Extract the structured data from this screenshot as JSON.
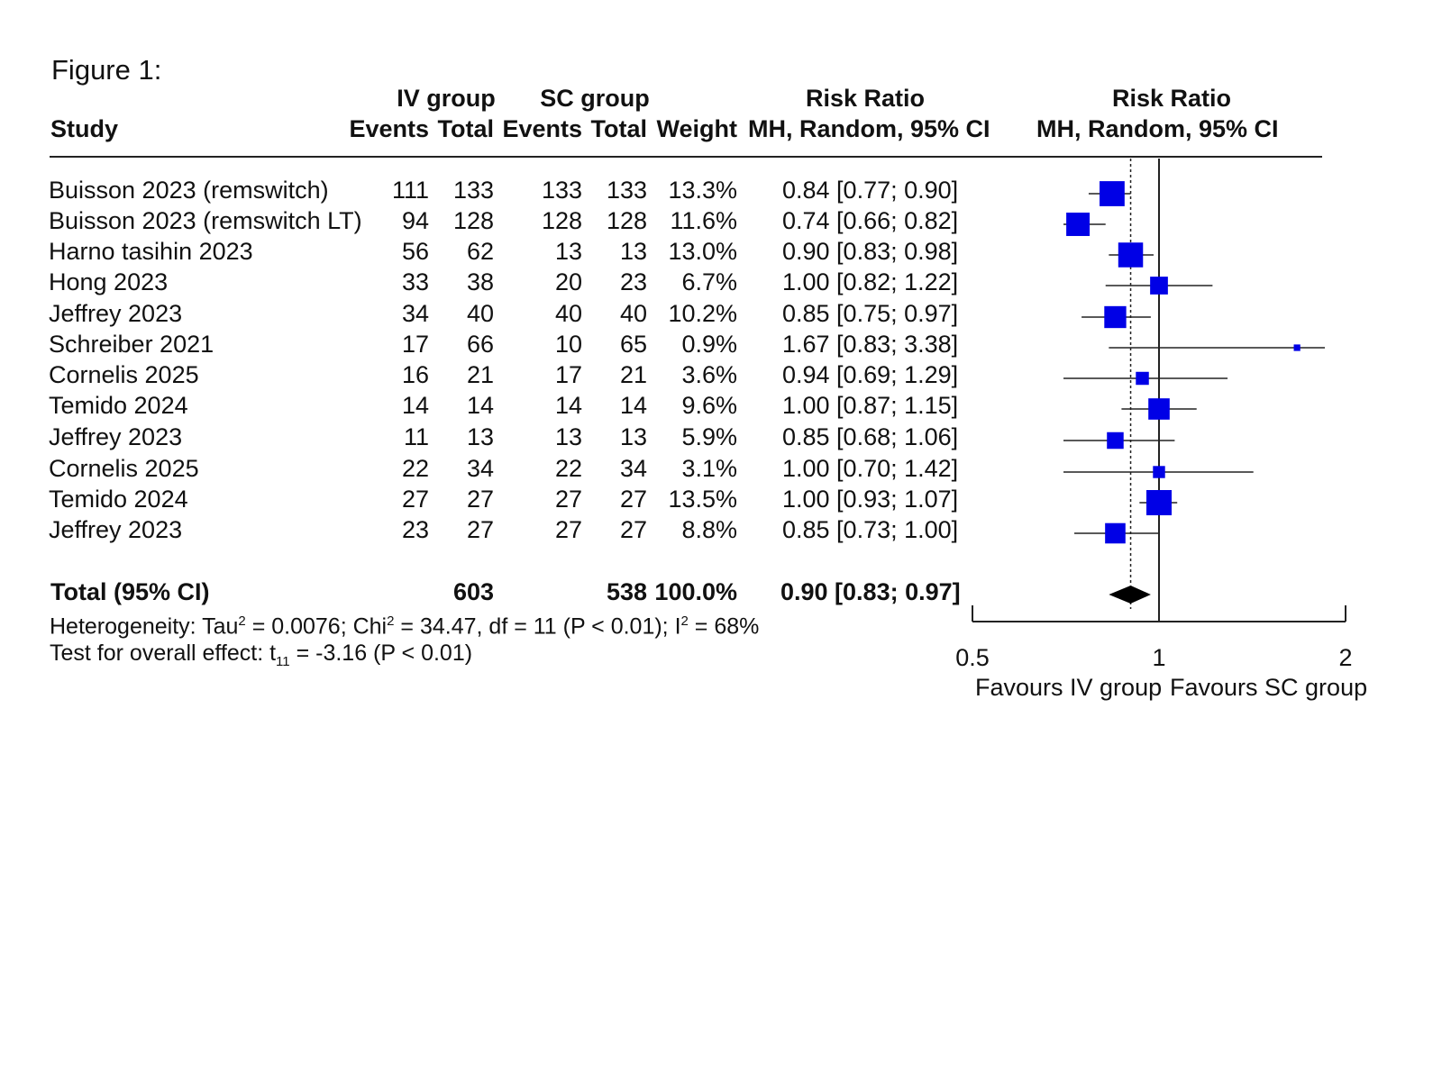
{
  "figure_caption": "Figure 1:",
  "header": {
    "iv_group": "IV group",
    "sc_group": "SC group",
    "risk_ratio": "Risk Ratio",
    "risk_ratio_plot": "Risk Ratio",
    "study": "Study",
    "events_iv": "Events",
    "total_iv": "Total",
    "events_sc": "Events",
    "total_sc": "Total",
    "weight": "Weight",
    "method": "MH, Random, 95% CI",
    "method_plot": "MH, Random, 95% CI"
  },
  "studies": [
    {
      "study": "Buisson 2023 (remswitch)",
      "iv_events": "111",
      "iv_total": "133",
      "sc_events": "133",
      "sc_total": "133",
      "weight": "13.3%",
      "ci_text": "0.84 [0.77; 0.90]"
    },
    {
      "study": "Buisson 2023 (remswitch LT)",
      "iv_events": "94",
      "iv_total": "128",
      "sc_events": "128",
      "sc_total": "128",
      "weight": "11.6%",
      "ci_text": "0.74 [0.66; 0.82]"
    },
    {
      "study": "Harno tasihin 2023",
      "iv_events": "56",
      "iv_total": "62",
      "sc_events": "13",
      "sc_total": "13",
      "weight": "13.0%",
      "ci_text": "0.90 [0.83; 0.98]"
    },
    {
      "study": "Hong 2023",
      "iv_events": "33",
      "iv_total": "38",
      "sc_events": "20",
      "sc_total": "23",
      "weight": "6.7%",
      "ci_text": "1.00 [0.82; 1.22]"
    },
    {
      "study": "Jeffrey 2023",
      "iv_events": "34",
      "iv_total": "40",
      "sc_events": "40",
      "sc_total": "40",
      "weight": "10.2%",
      "ci_text": "0.85 [0.75; 0.97]"
    },
    {
      "study": "Schreiber 2021",
      "iv_events": "17",
      "iv_total": "66",
      "sc_events": "10",
      "sc_total": "65",
      "weight": "0.9%",
      "ci_text": "1.67 [0.83; 3.38]"
    },
    {
      "study": "Cornelis 2025",
      "iv_events": "16",
      "iv_total": "21",
      "sc_events": "17",
      "sc_total": "21",
      "weight": "3.6%",
      "ci_text": "0.94 [0.69; 1.29]"
    },
    {
      "study": "Temido 2024",
      "iv_events": "14",
      "iv_total": "14",
      "sc_events": "14",
      "sc_total": "14",
      "weight": "9.6%",
      "ci_text": "1.00 [0.87; 1.15]"
    },
    {
      "study": "Jeffrey 2023",
      "iv_events": "11",
      "iv_total": "13",
      "sc_events": "13",
      "sc_total": "13",
      "weight": "5.9%",
      "ci_text": "0.85 [0.68; 1.06]"
    },
    {
      "study": "Cornelis 2025",
      "iv_events": "22",
      "iv_total": "34",
      "sc_events": "22",
      "sc_total": "34",
      "weight": "3.1%",
      "ci_text": "1.00 [0.70; 1.42]"
    },
    {
      "study": "Temido 2024",
      "iv_events": "27",
      "iv_total": "27",
      "sc_events": "27",
      "sc_total": "27",
      "weight": "13.5%",
      "ci_text": "1.00 [0.93; 1.07]"
    },
    {
      "study": "Jeffrey 2023",
      "iv_events": "23",
      "iv_total": "27",
      "sc_events": "27",
      "sc_total": "27",
      "weight": "8.8%",
      "ci_text": "0.85 [0.73; 1.00]"
    }
  ],
  "total": {
    "label": "Total (95% CI)",
    "iv_total": "603",
    "sc_total": "538",
    "weight": "100.0%",
    "ci_text": "0.90 [0.83; 0.97]"
  },
  "heterogeneity": {
    "prefix": "Heterogeneity: Tau",
    "sup1": "2",
    "mid1": " = 0.0076; Chi",
    "sup2": "2",
    "mid2": " = 34.47, df = 11 (P < 0.01); I",
    "sup3": "2",
    "suffix": " = 68%"
  },
  "overall_effect": {
    "prefix": "Test for overall effect: t",
    "sub": "11",
    "suffix": " = -3.16 (P < 0.01)"
  },
  "axis": {
    "favours_left": "Favours IV group",
    "favours_right": "Favours SC group"
  },
  "colors": {
    "study_marker": "#0000e6",
    "summary_diamond": "#000000",
    "line": "#222222"
  },
  "chart_data": {
    "type": "forest",
    "scale": "log",
    "xlim": [
      0.5,
      2
    ],
    "ticks": [
      0.5,
      1,
      2
    ],
    "tick_labels": [
      "0.5",
      "1",
      "2"
    ],
    "reference_line": 1,
    "pooled_estimate_line": 0.9,
    "points": [
      {
        "rr": 0.84,
        "lo": 0.77,
        "hi": 0.9,
        "weight": 13.3
      },
      {
        "rr": 0.74,
        "lo": 0.66,
        "hi": 0.82,
        "weight": 11.6
      },
      {
        "rr": 0.9,
        "lo": 0.83,
        "hi": 0.98,
        "weight": 13.0
      },
      {
        "rr": 1.0,
        "lo": 0.82,
        "hi": 1.22,
        "weight": 6.7
      },
      {
        "rr": 0.85,
        "lo": 0.75,
        "hi": 0.97,
        "weight": 10.2
      },
      {
        "rr": 1.67,
        "lo": 0.83,
        "hi": 3.38,
        "weight": 0.9
      },
      {
        "rr": 0.94,
        "lo": 0.69,
        "hi": 1.29,
        "weight": 3.6
      },
      {
        "rr": 1.0,
        "lo": 0.87,
        "hi": 1.15,
        "weight": 9.6
      },
      {
        "rr": 0.85,
        "lo": 0.68,
        "hi": 1.06,
        "weight": 5.9
      },
      {
        "rr": 1.0,
        "lo": 0.7,
        "hi": 1.42,
        "weight": 3.1
      },
      {
        "rr": 1.0,
        "lo": 0.93,
        "hi": 1.07,
        "weight": 13.5
      },
      {
        "rr": 0.85,
        "lo": 0.73,
        "hi": 1.0,
        "weight": 8.8
      }
    ],
    "summary": {
      "rr": 0.9,
      "lo": 0.83,
      "hi": 0.97
    }
  }
}
